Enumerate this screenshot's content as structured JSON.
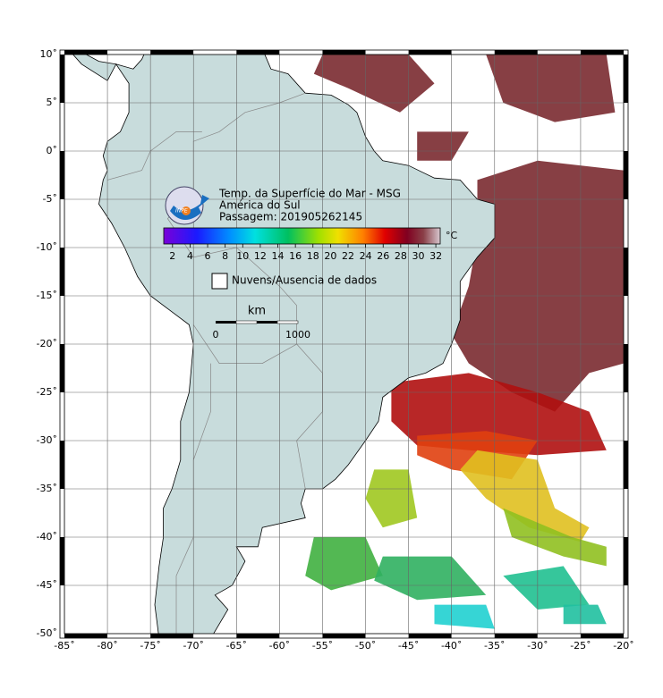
{
  "map": {
    "header": {
      "lines": [
        "Temp. da Superfície do Mar - MSG",
        "América do Sul",
        "Passagem: 201905262145"
      ],
      "logo": "INPE"
    },
    "xlim": [
      -85,
      -20
    ],
    "ylim": [
      -50,
      10
    ],
    "xticks": [
      {
        "value": -85,
        "label": "-85˚"
      },
      {
        "value": -80,
        "label": "-80˚"
      },
      {
        "value": -75,
        "label": "-75˚"
      },
      {
        "value": -70,
        "label": "-70˚"
      },
      {
        "value": -65,
        "label": "-65˚"
      },
      {
        "value": -60,
        "label": "-60˚"
      },
      {
        "value": -55,
        "label": "-55˚"
      },
      {
        "value": -50,
        "label": "-50˚"
      },
      {
        "value": -45,
        "label": "-45˚"
      },
      {
        "value": -40,
        "label": "-40˚"
      },
      {
        "value": -35,
        "label": "-35˚"
      },
      {
        "value": -30,
        "label": "-30˚"
      },
      {
        "value": -25,
        "label": "-25˚"
      },
      {
        "value": -20,
        "label": "-20˚"
      }
    ],
    "yticks": [
      {
        "value": 10,
        "label": "10˚"
      },
      {
        "value": 5,
        "label": "5˚"
      },
      {
        "value": 0,
        "label": "0˚"
      },
      {
        "value": -5,
        "label": "-5˚"
      },
      {
        "value": -10,
        "label": "-10˚"
      },
      {
        "value": -15,
        "label": "-15˚"
      },
      {
        "value": -20,
        "label": "-20˚"
      },
      {
        "value": -25,
        "label": "-25˚"
      },
      {
        "value": -30,
        "label": "-30˚"
      },
      {
        "value": -35,
        "label": "-35˚"
      },
      {
        "value": -40,
        "label": "-40˚"
      },
      {
        "value": -45,
        "label": "-45˚"
      },
      {
        "value": -50,
        "label": "-50˚"
      }
    ],
    "colorbar": {
      "unit": "°C",
      "range": [
        1,
        32.5
      ],
      "ticks": [
        2,
        4,
        6,
        8,
        10,
        12,
        14,
        16,
        18,
        20,
        22,
        24,
        26,
        28,
        30,
        32
      ]
    },
    "legend": "Nuvens/Ausencia de dados",
    "scale_bar": {
      "unit": "km",
      "labels": [
        0,
        1000
      ]
    }
  }
}
